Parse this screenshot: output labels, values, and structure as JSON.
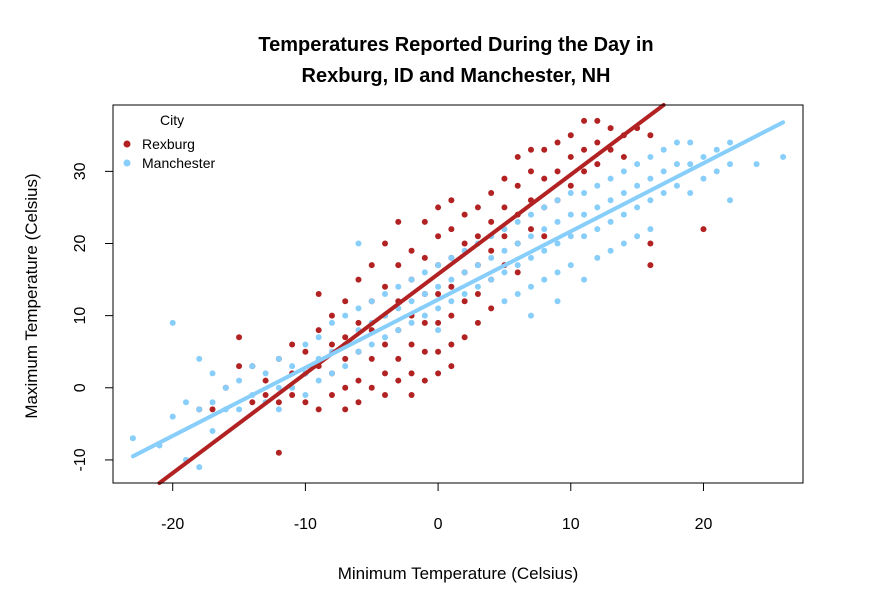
{
  "chart_data": {
    "type": "scatter",
    "title_lines": [
      "Temperatures Reported During the Day in",
      "Rexburg, ID and Manchester, NH"
    ],
    "xlabel": "Minimum Temperature (Celsius)",
    "ylabel": "Maximum Temperature (Celsius)",
    "xlim": [
      -24.5,
      27.5
    ],
    "ylim": [
      -13.2,
      39.2
    ],
    "x_ticks": [
      -20,
      -10,
      0,
      10,
      20
    ],
    "y_ticks": [
      -10,
      0,
      10,
      20,
      30
    ],
    "legend": {
      "title": "City",
      "position": "top-left",
      "entries": [
        "Rexburg",
        "Manchester"
      ]
    },
    "series": [
      {
        "name": "Rexburg",
        "color": "#B22222",
        "trend": {
          "x": [
            -21,
            17
          ],
          "y": [
            -13.2,
            39.2
          ]
        },
        "points": [
          [
            -18,
            -3
          ],
          [
            -17,
            -3
          ],
          [
            -16,
            0
          ],
          [
            -15,
            7
          ],
          [
            -15,
            3
          ],
          [
            -14,
            -2
          ],
          [
            -14,
            3
          ],
          [
            -13,
            1
          ],
          [
            -13,
            -1
          ],
          [
            -12,
            -9
          ],
          [
            -12,
            4
          ],
          [
            -12,
            -2
          ],
          [
            -11,
            6
          ],
          [
            -11,
            2
          ],
          [
            -11,
            -1
          ],
          [
            -10,
            5
          ],
          [
            -10,
            2
          ],
          [
            -10,
            -2
          ],
          [
            -9,
            13
          ],
          [
            -9,
            8
          ],
          [
            -9,
            3
          ],
          [
            -9,
            -3
          ],
          [
            -8,
            10
          ],
          [
            -8,
            6
          ],
          [
            -8,
            2
          ],
          [
            -8,
            -1
          ],
          [
            -7,
            12
          ],
          [
            -7,
            7
          ],
          [
            -7,
            4
          ],
          [
            -7,
            0
          ],
          [
            -7,
            -3
          ],
          [
            -6,
            15
          ],
          [
            -6,
            9
          ],
          [
            -6,
            5
          ],
          [
            -6,
            1
          ],
          [
            -6,
            -2
          ],
          [
            -5,
            17
          ],
          [
            -5,
            12
          ],
          [
            -5,
            8
          ],
          [
            -5,
            4
          ],
          [
            -5,
            0
          ],
          [
            -4,
            20
          ],
          [
            -4,
            14
          ],
          [
            -4,
            10
          ],
          [
            -4,
            6
          ],
          [
            -4,
            2
          ],
          [
            -4,
            -1
          ],
          [
            -3,
            23
          ],
          [
            -3,
            17
          ],
          [
            -3,
            12
          ],
          [
            -3,
            8
          ],
          [
            -3,
            4
          ],
          [
            -3,
            1
          ],
          [
            -2,
            19
          ],
          [
            -2,
            15
          ],
          [
            -2,
            10
          ],
          [
            -2,
            6
          ],
          [
            -2,
            2
          ],
          [
            -2,
            -1
          ],
          [
            -1,
            23
          ],
          [
            -1,
            18
          ],
          [
            -1,
            13
          ],
          [
            -1,
            9
          ],
          [
            -1,
            5
          ],
          [
            -1,
            1
          ],
          [
            0,
            25
          ],
          [
            0,
            21
          ],
          [
            0,
            17
          ],
          [
            0,
            13
          ],
          [
            0,
            9
          ],
          [
            0,
            5
          ],
          [
            0,
            2
          ],
          [
            1,
            26
          ],
          [
            1,
            22
          ],
          [
            1,
            18
          ],
          [
            1,
            14
          ],
          [
            1,
            10
          ],
          [
            1,
            6
          ],
          [
            1,
            3
          ],
          [
            2,
            24
          ],
          [
            2,
            20
          ],
          [
            2,
            16
          ],
          [
            2,
            12
          ],
          [
            2,
            7
          ],
          [
            3,
            25
          ],
          [
            3,
            21
          ],
          [
            3,
            17
          ],
          [
            3,
            13
          ],
          [
            3,
            9
          ],
          [
            4,
            27
          ],
          [
            4,
            23
          ],
          [
            4,
            19
          ],
          [
            4,
            15
          ],
          [
            4,
            11
          ],
          [
            5,
            29
          ],
          [
            5,
            25
          ],
          [
            5,
            21
          ],
          [
            5,
            17
          ],
          [
            6,
            32
          ],
          [
            6,
            28
          ],
          [
            6,
            24
          ],
          [
            6,
            20
          ],
          [
            6,
            16
          ],
          [
            7,
            33
          ],
          [
            7,
            30
          ],
          [
            7,
            26
          ],
          [
            7,
            22
          ],
          [
            8,
            33
          ],
          [
            8,
            29
          ],
          [
            8,
            25
          ],
          [
            8,
            21
          ],
          [
            9,
            34
          ],
          [
            9,
            30
          ],
          [
            9,
            26
          ],
          [
            10,
            35
          ],
          [
            10,
            32
          ],
          [
            10,
            28
          ],
          [
            11,
            37
          ],
          [
            11,
            33
          ],
          [
            11,
            30
          ],
          [
            12,
            37
          ],
          [
            12,
            34
          ],
          [
            12,
            31
          ],
          [
            13,
            36
          ],
          [
            13,
            33
          ],
          [
            14,
            35
          ],
          [
            14,
            32
          ],
          [
            15,
            36
          ],
          [
            16,
            35
          ],
          [
            16,
            20
          ],
          [
            16,
            17
          ],
          [
            20,
            22
          ]
        ]
      },
      {
        "name": "Manchester",
        "color": "#87CEFA",
        "trend": {
          "x": [
            -23,
            26
          ],
          "y": [
            -9.5,
            36.8
          ]
        },
        "points": [
          [
            -23,
            -7
          ],
          [
            -21,
            -8
          ],
          [
            -20,
            9
          ],
          [
            -20,
            -4
          ],
          [
            -19,
            -2
          ],
          [
            -19,
            -10
          ],
          [
            -18,
            4
          ],
          [
            -18,
            -3
          ],
          [
            -18,
            -11
          ],
          [
            -17,
            2
          ],
          [
            -17,
            -2
          ],
          [
            -17,
            -6
          ],
          [
            -16,
            0
          ],
          [
            -16,
            -3
          ],
          [
            -15,
            1
          ],
          [
            -15,
            -3
          ],
          [
            -14,
            3
          ],
          [
            -14,
            -1
          ],
          [
            -13,
            2
          ],
          [
            -13,
            -2
          ],
          [
            -12,
            4
          ],
          [
            -12,
            0
          ],
          [
            -12,
            -3
          ],
          [
            -11,
            3
          ],
          [
            -11,
            0
          ],
          [
            -10,
            6
          ],
          [
            -10,
            2
          ],
          [
            -10,
            -1
          ],
          [
            -9,
            7
          ],
          [
            -9,
            4
          ],
          [
            -9,
            1
          ],
          [
            -8,
            9
          ],
          [
            -8,
            5
          ],
          [
            -8,
            2
          ],
          [
            -7,
            10
          ],
          [
            -7,
            6
          ],
          [
            -7,
            3
          ],
          [
            -6,
            11
          ],
          [
            -6,
            8
          ],
          [
            -6,
            5
          ],
          [
            -6,
            20
          ],
          [
            -5,
            12
          ],
          [
            -5,
            9
          ],
          [
            -5,
            6
          ],
          [
            -4,
            13
          ],
          [
            -4,
            10
          ],
          [
            -4,
            7
          ],
          [
            -3,
            14
          ],
          [
            -3,
            11
          ],
          [
            -3,
            8
          ],
          [
            -2,
            15
          ],
          [
            -2,
            12
          ],
          [
            -2,
            9
          ],
          [
            -1,
            16
          ],
          [
            -1,
            13
          ],
          [
            -1,
            10
          ],
          [
            0,
            17
          ],
          [
            0,
            14
          ],
          [
            0,
            11
          ],
          [
            0,
            8
          ],
          [
            1,
            18
          ],
          [
            1,
            15
          ],
          [
            1,
            12
          ],
          [
            2,
            19
          ],
          [
            2,
            16
          ],
          [
            2,
            13
          ],
          [
            3,
            20
          ],
          [
            3,
            17
          ],
          [
            3,
            14
          ],
          [
            4,
            21
          ],
          [
            4,
            18
          ],
          [
            4,
            15
          ],
          [
            5,
            22
          ],
          [
            5,
            19
          ],
          [
            5,
            16
          ],
          [
            5,
            12
          ],
          [
            6,
            23
          ],
          [
            6,
            20
          ],
          [
            6,
            17
          ],
          [
            6,
            13
          ],
          [
            7,
            24
          ],
          [
            7,
            21
          ],
          [
            7,
            18
          ],
          [
            7,
            14
          ],
          [
            7,
            10
          ],
          [
            8,
            25
          ],
          [
            8,
            22
          ],
          [
            8,
            19
          ],
          [
            8,
            15
          ],
          [
            9,
            26
          ],
          [
            9,
            23
          ],
          [
            9,
            20
          ],
          [
            9,
            16
          ],
          [
            9,
            12
          ],
          [
            10,
            27
          ],
          [
            10,
            24
          ],
          [
            10,
            21
          ],
          [
            10,
            17
          ],
          [
            11,
            27
          ],
          [
            11,
            24
          ],
          [
            11,
            21
          ],
          [
            11,
            15
          ],
          [
            12,
            28
          ],
          [
            12,
            25
          ],
          [
            12,
            22
          ],
          [
            12,
            18
          ],
          [
            13,
            29
          ],
          [
            13,
            26
          ],
          [
            13,
            23
          ],
          [
            13,
            19
          ],
          [
            14,
            30
          ],
          [
            14,
            27
          ],
          [
            14,
            24
          ],
          [
            14,
            20
          ],
          [
            15,
            31
          ],
          [
            15,
            28
          ],
          [
            15,
            25
          ],
          [
            15,
            21
          ],
          [
            16,
            32
          ],
          [
            16,
            29
          ],
          [
            16,
            26
          ],
          [
            16,
            22
          ],
          [
            17,
            33
          ],
          [
            17,
            30
          ],
          [
            17,
            27
          ],
          [
            18,
            34
          ],
          [
            18,
            31
          ],
          [
            18,
            28
          ],
          [
            19,
            34
          ],
          [
            19,
            31
          ],
          [
            19,
            27
          ],
          [
            20,
            32
          ],
          [
            20,
            29
          ],
          [
            21,
            33
          ],
          [
            21,
            30
          ],
          [
            22,
            34
          ],
          [
            22,
            31
          ],
          [
            22,
            26
          ],
          [
            24,
            31
          ],
          [
            26,
            32
          ]
        ]
      }
    ]
  }
}
